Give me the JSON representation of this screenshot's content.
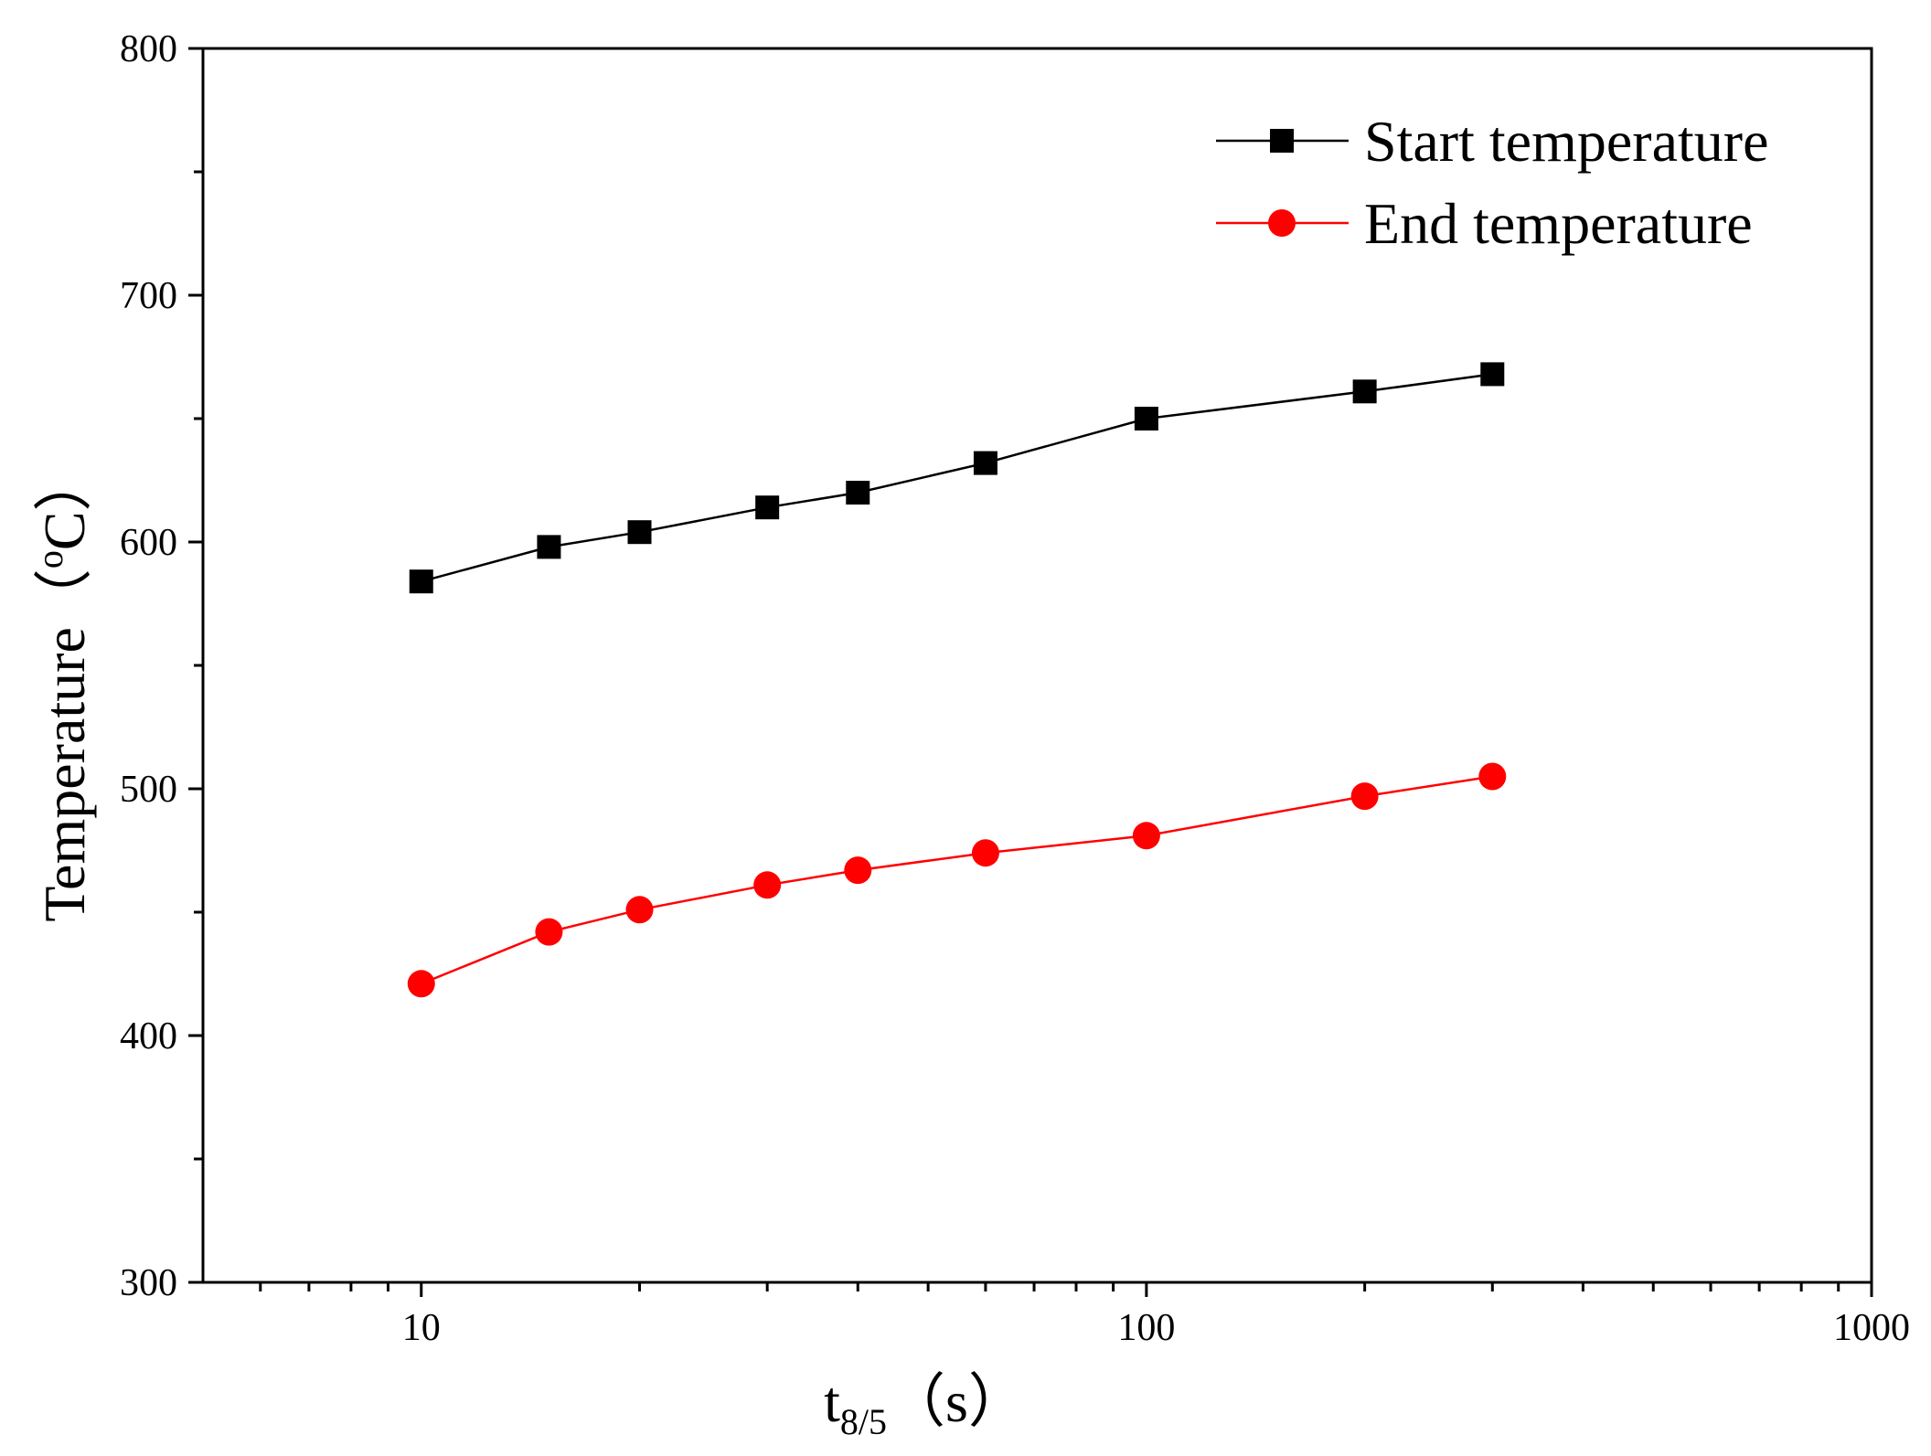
{
  "chart_data": {
    "type": "line",
    "title": "",
    "xlabel": {
      "main": "t",
      "subscript": "8/5",
      "unit": "（s）"
    },
    "ylabel": {
      "main": "Temperature",
      "unit_open": "（",
      "degree": "o",
      "unit_close": "C）"
    },
    "xscale": "log",
    "xlim": [
      5,
      1000
    ],
    "ylim": [
      300,
      800
    ],
    "x_ticks": [
      10,
      100,
      1000
    ],
    "x_tick_labels": [
      "10",
      "100",
      "1000"
    ],
    "y_ticks": [
      300,
      400,
      500,
      600,
      700,
      800
    ],
    "y_tick_labels": [
      "300",
      "400",
      "500",
      "600",
      "700",
      "800"
    ],
    "y_minor_ticks": [
      350,
      450,
      550,
      650,
      750
    ],
    "x_minor_ticks": [
      6,
      7,
      8,
      9,
      20,
      30,
      40,
      50,
      60,
      70,
      80,
      90,
      200,
      300,
      400,
      500,
      600,
      700,
      800,
      900
    ],
    "grid": false,
    "legend_position": "top-right",
    "series": [
      {
        "name": "Start temperature",
        "color": "#000000",
        "marker": "square",
        "x": [
          10,
          15,
          20,
          30,
          40,
          60,
          100,
          200,
          300
        ],
        "values": [
          584,
          598,
          604,
          614,
          620,
          632,
          650,
          661,
          668
        ]
      },
      {
        "name": "End temperature",
        "color": "#ff0000",
        "marker": "circle",
        "x": [
          10,
          15,
          20,
          30,
          40,
          60,
          100,
          200,
          300
        ],
        "values": [
          421,
          442,
          451,
          461,
          467,
          474,
          481,
          497,
          505
        ]
      }
    ]
  }
}
